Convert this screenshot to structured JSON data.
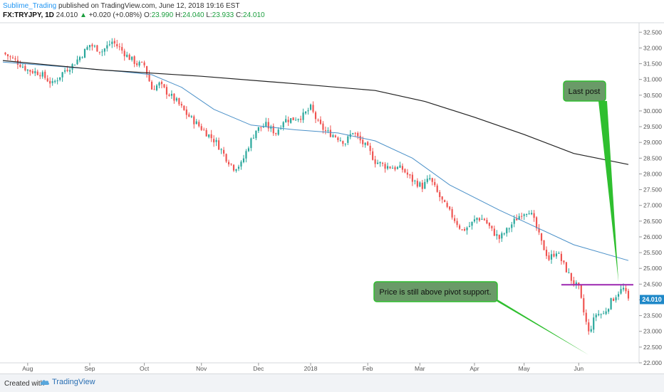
{
  "header": {
    "author": "Sublime_Trading",
    "published": "published on TradingView.com, June 12, 2018 19:16 EST",
    "symbol": "FX:TRYJPY, 1D",
    "last": "24.010",
    "arrow": "▲",
    "change": "+0.020 (+0.08%)",
    "o_label": "O:",
    "o_val": "23.990",
    "h_label": "H:",
    "h_val": "24.040",
    "l_label": "L:",
    "l_val": "23.933",
    "c_label": "C:",
    "c_val": "24.010"
  },
  "footer": {
    "created": "Created with",
    "brand": "TradingView"
  },
  "colors": {
    "up": "#26a69a",
    "down": "#ef5350",
    "ma_short": "#4a90c8",
    "ma_long": "#222222",
    "pivot": "#9c27b0",
    "annotation_fill": "#6a9a68",
    "annotation_border": "#2fbf2f",
    "price_label": "#1e88c8"
  },
  "chart_data": {
    "type": "candlestick",
    "ylim": [
      22,
      32.8
    ],
    "yticks": [
      "32.500",
      "32.000",
      "31.500",
      "31.000",
      "30.500",
      "30.000",
      "29.500",
      "29.000",
      "28.500",
      "28.000",
      "27.500",
      "27.000",
      "26.500",
      "26.000",
      "25.500",
      "25.000",
      "24.500",
      "24.000",
      "23.500",
      "23.000",
      "22.500",
      "22.000"
    ],
    "xticks": [
      "Aug",
      "Sep",
      "Oct",
      "Nov",
      "Dec",
      "2018",
      "Feb",
      "Mar",
      "Apr",
      "May",
      "Jun"
    ],
    "last_price_label": "24.010",
    "pivot_level": 24.48,
    "close_path": [
      [
        0,
        31.85
      ],
      [
        5,
        31.6
      ],
      [
        10,
        31.3
      ],
      [
        15,
        31.2
      ],
      [
        20,
        30.85
      ],
      [
        25,
        31.3
      ],
      [
        28,
        31.45
      ],
      [
        32,
        31.8
      ],
      [
        35,
        32.1
      ],
      [
        40,
        31.9
      ],
      [
        44,
        32.2
      ],
      [
        47,
        32.0
      ],
      [
        50,
        31.75
      ],
      [
        54,
        31.5
      ],
      [
        57,
        31.45
      ],
      [
        60,
        30.7
      ],
      [
        63,
        30.85
      ],
      [
        66,
        30.6
      ],
      [
        70,
        30.3
      ],
      [
        74,
        29.9
      ],
      [
        78,
        29.6
      ],
      [
        82,
        29.3
      ],
      [
        86,
        29.0
      ],
      [
        90,
        28.5
      ],
      [
        93,
        28.2
      ],
      [
        96,
        28.3
      ],
      [
        99,
        28.9
      ],
      [
        102,
        29.4
      ],
      [
        106,
        29.55
      ],
      [
        110,
        29.3
      ],
      [
        113,
        29.7
      ],
      [
        117,
        29.75
      ],
      [
        121,
        29.85
      ],
      [
        124,
        30.1
      ],
      [
        127,
        29.6
      ],
      [
        130,
        29.35
      ],
      [
        134,
        29.2
      ],
      [
        138,
        29.0
      ],
      [
        141,
        29.35
      ],
      [
        144,
        29.05
      ],
      [
        147,
        28.8
      ],
      [
        150,
        28.4
      ],
      [
        154,
        28.25
      ],
      [
        158,
        28.2
      ],
      [
        161,
        28.15
      ],
      [
        165,
        27.8
      ],
      [
        169,
        27.6
      ],
      [
        172,
        27.85
      ],
      [
        175,
        27.4
      ],
      [
        178,
        27.0
      ],
      [
        182,
        26.55
      ],
      [
        185,
        26.2
      ],
      [
        188,
        26.35
      ],
      [
        191,
        26.6
      ],
      [
        194,
        26.55
      ],
      [
        197,
        26.2
      ],
      [
        200,
        25.95
      ],
      [
        203,
        26.2
      ],
      [
        206,
        26.5
      ],
      [
        209,
        26.75
      ],
      [
        212,
        26.85
      ],
      [
        214,
        26.5
      ],
      [
        217,
        25.8
      ],
      [
        220,
        25.3
      ],
      [
        223,
        25.55
      ],
      [
        226,
        25.1
      ],
      [
        229,
        24.65
      ],
      [
        232,
        24.35
      ],
      [
        234,
        23.6
      ],
      [
        236,
        22.95
      ],
      [
        239,
        23.55
      ],
      [
        242,
        23.55
      ],
      [
        245,
        23.95
      ],
      [
        248,
        24.25
      ],
      [
        250,
        24.35
      ],
      [
        252,
        24.0
      ]
    ],
    "ma_short": [
      [
        0,
        31.55
      ],
      [
        25,
        31.4
      ],
      [
        48,
        31.25
      ],
      [
        60,
        31.15
      ],
      [
        72,
        30.75
      ],
      [
        85,
        30.05
      ],
      [
        100,
        29.55
      ],
      [
        118,
        29.4
      ],
      [
        135,
        29.3
      ],
      [
        150,
        29.05
      ],
      [
        165,
        28.5
      ],
      [
        180,
        27.65
      ],
      [
        200,
        26.85
      ],
      [
        215,
        26.3
      ],
      [
        230,
        25.75
      ],
      [
        252,
        25.25
      ]
    ],
    "ma_long": [
      [
        0,
        31.6
      ],
      [
        40,
        31.3
      ],
      [
        80,
        31.1
      ],
      [
        120,
        30.85
      ],
      [
        150,
        30.65
      ],
      [
        170,
        30.3
      ],
      [
        190,
        29.8
      ],
      [
        210,
        29.25
      ],
      [
        230,
        28.65
      ],
      [
        252,
        28.3
      ]
    ],
    "annotations": [
      {
        "text": "Last post"
      },
      {
        "text": "Price is still above pivot support."
      }
    ]
  }
}
